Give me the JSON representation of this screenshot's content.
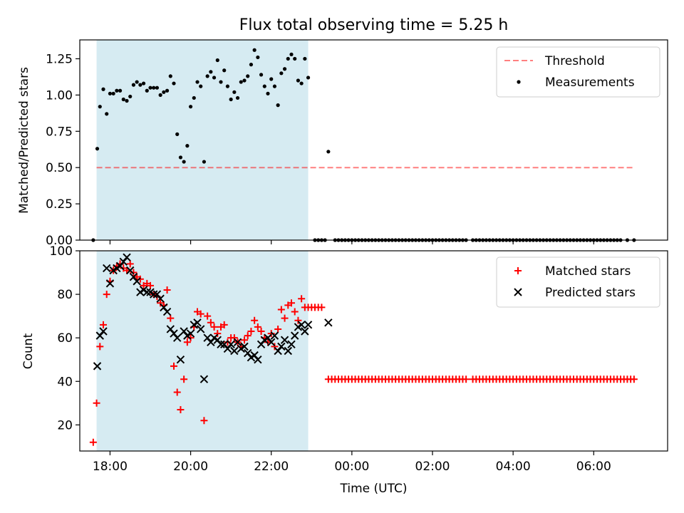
{
  "chart_data": [
    {
      "type": "scatter",
      "title": "Flux total observing time = 5.25 h",
      "xlabel": "",
      "ylabel": "Matched/Predicted stars",
      "xlim": [
        "17:15",
        "07:50"
      ],
      "ylim": [
        0,
        1.38
      ],
      "yticks": [
        "0.00",
        "0.25",
        "0.50",
        "0.75",
        "1.00",
        "1.25"
      ],
      "highlight_span": [
        "17:40",
        "22:55"
      ],
      "legend_position": "top-right",
      "threshold": {
        "name": "Threshold",
        "value": 0.5,
        "x_range": [
          "17:40",
          "07:00"
        ]
      },
      "series": [
        {
          "name": "Measurements",
          "x": [
            "17:35",
            "17:41",
            "17:45",
            "17:50",
            "17:55",
            "18:00",
            "18:05",
            "18:10",
            "18:15",
            "18:20",
            "18:25",
            "18:30",
            "18:35",
            "18:40",
            "18:45",
            "18:50",
            "18:55",
            "19:00",
            "19:05",
            "19:10",
            "19:15",
            "19:20",
            "19:25",
            "19:30",
            "19:35",
            "19:40",
            "19:45",
            "19:50",
            "19:55",
            "20:00",
            "20:05",
            "20:10",
            "20:15",
            "20:20",
            "20:25",
            "20:30",
            "20:35",
            "20:40",
            "20:45",
            "20:50",
            "20:55",
            "21:00",
            "21:05",
            "21:10",
            "21:15",
            "21:20",
            "21:25",
            "21:30",
            "21:35",
            "21:40",
            "21:45",
            "21:50",
            "21:55",
            "22:00",
            "22:05",
            "22:10",
            "22:15",
            "22:20",
            "22:25",
            "22:30",
            "22:35",
            "22:40",
            "22:45",
            "22:50",
            "22:55",
            "23:25"
          ],
          "y": [
            0.0,
            0.63,
            0.92,
            1.04,
            0.87,
            1.01,
            1.01,
            1.03,
            1.03,
            0.97,
            0.96,
            0.99,
            1.07,
            1.09,
            1.07,
            1.08,
            1.03,
            1.05,
            1.05,
            1.05,
            1.0,
            1.02,
            1.03,
            1.13,
            1.08,
            0.73,
            0.57,
            0.54,
            0.65,
            0.92,
            0.98,
            1.09,
            1.06,
            0.54,
            1.13,
            1.16,
            1.12,
            1.24,
            1.09,
            1.17,
            1.06,
            0.97,
            1.02,
            0.98,
            1.09,
            1.1,
            1.13,
            1.21,
            1.31,
            1.26,
            1.14,
            1.06,
            1.01,
            1.11,
            1.06,
            0.93,
            1.15,
            1.18,
            1.25,
            1.28,
            1.25,
            1.1,
            1.08,
            1.25,
            1.12,
            0.61
          ],
          "zero_x": [
            "23:05",
            "23:10",
            "23:15",
            "23:20",
            "23:35",
            "23:40",
            "23:45",
            "23:50",
            "23:55",
            "00:00",
            "00:05",
            "00:10",
            "00:15",
            "00:20",
            "00:25",
            "00:30",
            "00:35",
            "00:40",
            "00:45",
            "00:50",
            "00:55",
            "01:00",
            "01:05",
            "01:10",
            "01:15",
            "01:20",
            "01:25",
            "01:30",
            "01:35",
            "01:40",
            "01:45",
            "01:50",
            "01:55",
            "02:00",
            "02:05",
            "02:10",
            "02:15",
            "02:20",
            "02:25",
            "02:30",
            "02:35",
            "02:40",
            "02:45",
            "02:50",
            "03:00",
            "03:05",
            "03:10",
            "03:15",
            "03:20",
            "03:25",
            "03:30",
            "03:35",
            "03:40",
            "03:45",
            "03:50",
            "03:55",
            "04:00",
            "04:05",
            "04:10",
            "04:15",
            "04:20",
            "04:25",
            "04:30",
            "04:35",
            "04:40",
            "04:45",
            "04:50",
            "04:55",
            "05:00",
            "05:05",
            "05:10",
            "05:15",
            "05:20",
            "05:25",
            "05:30",
            "05:35",
            "05:40",
            "05:45",
            "05:50",
            "05:55",
            "06:00",
            "06:05",
            "06:10",
            "06:15",
            "06:20",
            "06:25",
            "06:30",
            "06:35",
            "06:40",
            "06:50",
            "07:00"
          ],
          "color": "#000000"
        }
      ]
    },
    {
      "type": "scatter",
      "title": "",
      "xlabel": "Time (UTC)",
      "ylabel": "Count",
      "xlim": [
        "17:15",
        "07:50"
      ],
      "ylim": [
        8,
        100
      ],
      "yticks": [
        "20",
        "40",
        "60",
        "80",
        "100"
      ],
      "xticks": [
        "18:00",
        "20:00",
        "22:00",
        "00:00",
        "02:00",
        "04:00",
        "06:00"
      ],
      "highlight_span": [
        "17:40",
        "22:55"
      ],
      "legend_position": "top-right",
      "series": [
        {
          "name": "Matched stars",
          "marker": "+",
          "color": "#ff0000",
          "x": [
            "17:35",
            "17:40",
            "17:45",
            "17:50",
            "17:55",
            "18:00",
            "18:05",
            "18:10",
            "18:15",
            "18:20",
            "18:25",
            "18:30",
            "18:35",
            "18:40",
            "18:45",
            "18:50",
            "18:55",
            "19:00",
            "19:05",
            "19:10",
            "19:15",
            "19:20",
            "19:25",
            "19:30",
            "19:35",
            "19:40",
            "19:45",
            "19:50",
            "19:55",
            "20:00",
            "20:05",
            "20:10",
            "20:15",
            "20:20",
            "20:25",
            "20:30",
            "20:35",
            "20:40",
            "20:45",
            "20:50",
            "20:55",
            "21:00",
            "21:05",
            "21:10",
            "21:15",
            "21:20",
            "21:25",
            "21:30",
            "21:35",
            "21:40",
            "21:45",
            "21:50",
            "21:55",
            "22:00",
            "22:05",
            "22:10",
            "22:15",
            "22:20",
            "22:25",
            "22:30",
            "22:35",
            "22:40",
            "22:45",
            "22:50",
            "22:55",
            "23:00",
            "23:05",
            "23:10",
            "23:15"
          ],
          "y": [
            12,
            30,
            56,
            66,
            80,
            86,
            91,
            93,
            94,
            92,
            91,
            94,
            90,
            88,
            87,
            84,
            85,
            84,
            80,
            79,
            76,
            75,
            82,
            69,
            47,
            35,
            27,
            41,
            58,
            60,
            65,
            72,
            71,
            22,
            70,
            67,
            65,
            62,
            65,
            66,
            58,
            60,
            60,
            58,
            56,
            59,
            61,
            63,
            68,
            65,
            63,
            60,
            58,
            62,
            56,
            64,
            73,
            69,
            75,
            76,
            72,
            68,
            78,
            74,
            74,
            74,
            74,
            74,
            74
          ]
        },
        {
          "name": "Predicted stars",
          "marker": "x",
          "color": "#000000",
          "x": [
            "17:41",
            "17:45",
            "17:50",
            "17:55",
            "18:00",
            "18:05",
            "18:10",
            "18:15",
            "18:20",
            "18:25",
            "18:30",
            "18:35",
            "18:40",
            "18:45",
            "18:50",
            "18:55",
            "19:00",
            "19:05",
            "19:10",
            "19:15",
            "19:20",
            "19:25",
            "19:30",
            "19:35",
            "19:40",
            "19:45",
            "19:50",
            "19:55",
            "20:00",
            "20:05",
            "20:10",
            "20:15",
            "20:20",
            "20:25",
            "20:30",
            "20:35",
            "20:40",
            "20:45",
            "20:50",
            "20:55",
            "21:00",
            "21:05",
            "21:10",
            "21:15",
            "21:20",
            "21:25",
            "21:30",
            "21:35",
            "21:40",
            "21:45",
            "21:50",
            "21:55",
            "22:00",
            "22:05",
            "22:10",
            "22:15",
            "22:20",
            "22:25",
            "22:30",
            "22:35",
            "22:40",
            "22:45",
            "22:50",
            "22:55",
            "23:25"
          ],
          "y": [
            47,
            61,
            63,
            92,
            85,
            91,
            92,
            93,
            95,
            97,
            91,
            88,
            86,
            81,
            82,
            81,
            81,
            80,
            80,
            78,
            74,
            72,
            64,
            62,
            60,
            50,
            63,
            61,
            62,
            66,
            67,
            64,
            41,
            60,
            58,
            60,
            59,
            57,
            57,
            55,
            57,
            54,
            58,
            55,
            56,
            53,
            51,
            52,
            50,
            57,
            59,
            60,
            58,
            61,
            54,
            56,
            59,
            54,
            57,
            61,
            65,
            66,
            63,
            66,
            67
          ]
        }
      ]
    }
  ]
}
